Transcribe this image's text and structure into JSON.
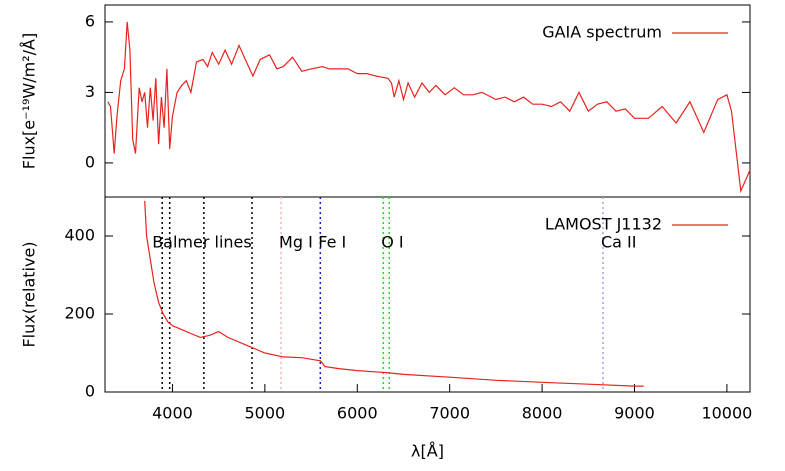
{
  "chart_data": [
    {
      "type": "line",
      "ylabel": "Flux[e⁻¹⁹W/m²/Å]",
      "xlim": [
        3270,
        10250
      ],
      "ylim": [
        -1.45,
        6.72
      ],
      "yticks": [
        0,
        3,
        6
      ],
      "legend": "top-right",
      "series": [
        {
          "name": "GAIA spectrum",
          "color": "#e8231e",
          "x": [
            3300,
            3330,
            3370,
            3400,
            3440,
            3480,
            3510,
            3540,
            3570,
            3600,
            3640,
            3670,
            3700,
            3730,
            3760,
            3790,
            3820,
            3850,
            3880,
            3910,
            3940,
            3970,
            4000,
            4050,
            4100,
            4150,
            4200,
            4260,
            4330,
            4380,
            4430,
            4500,
            4570,
            4640,
            4720,
            4800,
            4870,
            4950,
            5050,
            5130,
            5200,
            5300,
            5400,
            5500,
            5620,
            5700,
            5800,
            5900,
            6000,
            6100,
            6200,
            6330,
            6370,
            6400,
            6450,
            6500,
            6550,
            6620,
            6700,
            6780,
            6850,
            6950,
            7050,
            7150,
            7250,
            7350,
            7500,
            7600,
            7700,
            7800,
            7900,
            8000,
            8100,
            8200,
            8300,
            8400,
            8500,
            8600,
            8700,
            8800,
            8900,
            9000,
            9150,
            9300,
            9450,
            9600,
            9750,
            9900,
            10000,
            10050,
            10150,
            10250
          ],
          "values": [
            2.6,
            2.4,
            0.4,
            2.0,
            3.5,
            4.0,
            6.0,
            4.8,
            1.0,
            0.4,
            3.2,
            2.6,
            3.0,
            1.5,
            3.2,
            1.8,
            3.6,
            0.8,
            2.8,
            1.5,
            4.0,
            0.6,
            2.0,
            3.0,
            3.3,
            3.5,
            3.0,
            4.3,
            4.4,
            4.1,
            4.7,
            4.2,
            4.8,
            4.2,
            5.0,
            4.3,
            3.7,
            4.4,
            4.6,
            4.0,
            4.1,
            4.5,
            3.9,
            4.0,
            4.1,
            4.0,
            4.0,
            4.0,
            3.8,
            3.8,
            3.7,
            3.6,
            3.4,
            2.8,
            3.5,
            2.7,
            3.4,
            2.8,
            3.4,
            3.0,
            3.3,
            2.9,
            3.2,
            2.9,
            2.9,
            3.0,
            2.7,
            2.8,
            2.6,
            2.8,
            2.5,
            2.5,
            2.4,
            2.6,
            2.2,
            3.0,
            2.2,
            2.5,
            2.6,
            2.2,
            2.3,
            1.9,
            1.9,
            2.4,
            1.7,
            2.6,
            1.3,
            2.7,
            2.9,
            2.2,
            -1.2,
            -0.3
          ]
        }
      ]
    },
    {
      "type": "line",
      "ylabel": "Flux(relative)",
      "xlabel": "λ[Å]",
      "xlim": [
        3270,
        10250
      ],
      "ylim": [
        0,
        500
      ],
      "yticks": [
        0,
        200,
        400
      ],
      "xticks": [
        4000,
        5000,
        6000,
        7000,
        8000,
        9000,
        10000
      ],
      "legend": "top-right",
      "series": [
        {
          "name": "LAMOST J1132",
          "color": "#e8231e",
          "x": [
            3700,
            3720,
            3760,
            3800,
            3850,
            3900,
            3950,
            4000,
            4100,
            4200,
            4300,
            4400,
            4500,
            4600,
            4800,
            5000,
            5200,
            5400,
            5600,
            5620,
            5650,
            5800,
            6000,
            6300,
            6500,
            7000,
            7500,
            8000,
            8500,
            9000,
            9100
          ],
          "values": [
            490,
            400,
            340,
            280,
            230,
            200,
            180,
            170,
            160,
            150,
            140,
            145,
            155,
            140,
            120,
            100,
            90,
            88,
            80,
            75,
            65,
            60,
            55,
            50,
            45,
            38,
            30,
            25,
            20,
            15,
            15
          ]
        }
      ],
      "lines": [
        {
          "label": "Balmer lines",
          "color": "#000000",
          "x": [
            3889,
            3970,
            4340,
            4861
          ]
        },
        {
          "label": "Mg I",
          "color": "#f4b6b6",
          "x": [
            5175
          ]
        },
        {
          "label": "Fe I",
          "color": "#1a1ad6",
          "x": [
            5600
          ]
        },
        {
          "label": "O I",
          "color": "#22dd22",
          "x": [
            6281,
            6346
          ]
        },
        {
          "label": "Ca II",
          "color": "#b29be8",
          "x": [
            8659
          ]
        }
      ]
    }
  ]
}
